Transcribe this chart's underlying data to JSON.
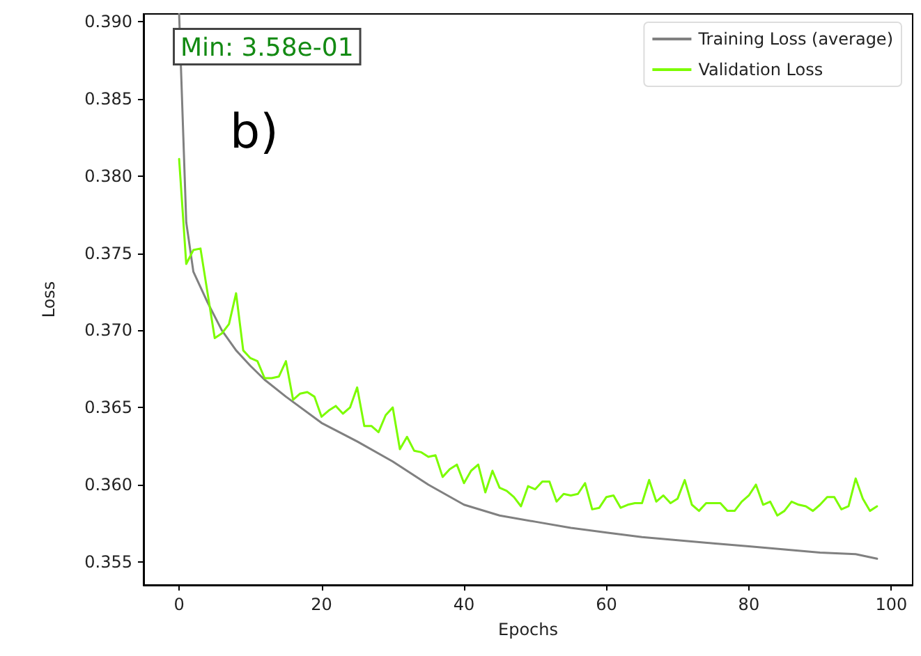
{
  "chart_data": {
    "type": "line",
    "xlabel": "Epochs",
    "ylabel": "Loss",
    "annotations": [
      "Min: 3.58e-01",
      "b)"
    ],
    "x": [
      0,
      1,
      2,
      3,
      4,
      5,
      6,
      7,
      8,
      9,
      10,
      11,
      12,
      13,
      14,
      15,
      16,
      17,
      18,
      19,
      20,
      21,
      22,
      23,
      24,
      25,
      26,
      27,
      28,
      29,
      30,
      31,
      32,
      33,
      34,
      35,
      36,
      37,
      38,
      39,
      40,
      41,
      42,
      43,
      44,
      45,
      46,
      47,
      48,
      49,
      50,
      51,
      52,
      53,
      54,
      55,
      56,
      57,
      58,
      59,
      60,
      61,
      62,
      63,
      64,
      65,
      66,
      67,
      68,
      69,
      70,
      71,
      72,
      73,
      74,
      75,
      76,
      77,
      78,
      79,
      80,
      81,
      82,
      83,
      84,
      85,
      86,
      87,
      88,
      89,
      90,
      91,
      92,
      93,
      94,
      95,
      96,
      97,
      98
    ],
    "series": [
      {
        "name": "Training Loss (average)",
        "color": "#808080",
        "x": [
          0,
          1,
          2,
          4,
          6,
          8,
          10,
          12,
          15,
          20,
          25,
          30,
          35,
          40,
          45,
          50,
          55,
          60,
          65,
          70,
          75,
          80,
          85,
          90,
          95,
          98
        ],
        "values": [
          0.3905,
          0.377,
          0.3738,
          0.3718,
          0.37,
          0.3687,
          0.3677,
          0.3668,
          0.3657,
          0.364,
          0.3628,
          0.3615,
          0.36,
          0.3587,
          0.358,
          0.3576,
          0.3572,
          0.3569,
          0.3566,
          0.3564,
          0.3562,
          0.356,
          0.3558,
          0.3556,
          0.3555,
          0.3552
        ]
      },
      {
        "name": "Validation Loss",
        "color": "#7cfc00",
        "values": [
          0.3811,
          0.3743,
          0.3752,
          0.3753,
          0.3724,
          0.3695,
          0.3698,
          0.3704,
          0.3724,
          0.3687,
          0.3682,
          0.368,
          0.3669,
          0.3669,
          0.367,
          0.368,
          0.3655,
          0.3659,
          0.366,
          0.3657,
          0.3644,
          0.3648,
          0.3651,
          0.3646,
          0.365,
          0.3663,
          0.3638,
          0.3638,
          0.3634,
          0.3645,
          0.365,
          0.3623,
          0.3631,
          0.3622,
          0.3621,
          0.3618,
          0.3619,
          0.3605,
          0.361,
          0.3613,
          0.3601,
          0.3609,
          0.3613,
          0.3595,
          0.3609,
          0.3598,
          0.3596,
          0.3592,
          0.3586,
          0.3599,
          0.3597,
          0.3602,
          0.3602,
          0.3589,
          0.3594,
          0.3593,
          0.3594,
          0.3601,
          0.3584,
          0.3585,
          0.3592,
          0.3593,
          0.3585,
          0.3587,
          0.3588,
          0.3588,
          0.3603,
          0.3589,
          0.3593,
          0.3588,
          0.3591,
          0.3603,
          0.3587,
          0.3583,
          0.3588,
          0.3588,
          0.3588,
          0.3583,
          0.3583,
          0.3589,
          0.3593,
          0.36,
          0.3587,
          0.3589,
          0.358,
          0.3583,
          0.3589,
          0.3587,
          0.3586,
          0.3583,
          0.3587,
          0.3592,
          0.3592,
          0.3584,
          0.3586,
          0.3604,
          0.3591,
          0.3583,
          0.3586
        ]
      }
    ],
    "xlim": [
      -5,
      103
    ],
    "xticks": [
      0,
      20,
      40,
      60,
      80,
      100
    ],
    "ylim": [
      0.3535,
      0.3905
    ],
    "yticks": [
      0.355,
      {
        "value": 0.36,
        "label": "0.360"
      },
      0.365,
      {
        "value": 0.37,
        "label": "0.370"
      },
      0.375,
      {
        "value": 0.38,
        "label": "0.380"
      },
      0.385,
      {
        "value": 0.39,
        "label": "0.390"
      }
    ],
    "legend": "top right",
    "grid": false,
    "marker": "none",
    "line_style": "solid"
  }
}
